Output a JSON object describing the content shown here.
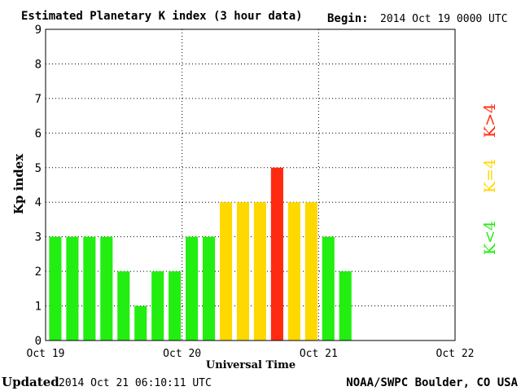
{
  "header": {
    "title": "Estimated Planetary K index (3 hour data)",
    "begin_label": "Begin:",
    "begin_value": "2014 Oct 19 0000 UTC"
  },
  "footer": {
    "updated_label": "Updated",
    "updated_value": "2014 Oct 21 06:10:11 UTC",
    "source": "NOAA/SWPC Boulder, CO USA"
  },
  "legend": {
    "k_greater": "K>4",
    "k_equal": "K=4",
    "k_less": "K<4"
  },
  "colors": {
    "k_less": "#22ee11",
    "k_equal": "#ffd800",
    "k_greater": "#ff2a10"
  },
  "chart_data": {
    "type": "bar",
    "title": "Estimated Planetary K index (3 hour data)",
    "xlabel": "Universal Time",
    "ylabel": "Kp index",
    "ylim": [
      0,
      9
    ],
    "yticks": [
      "0",
      "1",
      "2",
      "3",
      "4",
      "5",
      "6",
      "7",
      "8",
      "9"
    ],
    "xticks": [
      "Oct 19",
      "Oct 20",
      "Oct 21",
      "Oct 22"
    ],
    "bin_hours": 3,
    "values": [
      3,
      3,
      3,
      3,
      2,
      1,
      2,
      2,
      3,
      3,
      4,
      4,
      4,
      5,
      4,
      4,
      3,
      2
    ],
    "slots": 24,
    "grid": true
  }
}
